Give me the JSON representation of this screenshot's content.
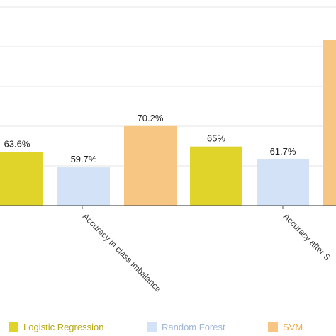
{
  "chart_data": {
    "type": "bar",
    "categories": [
      "Accuracy in class imbalance",
      "Accuracy after S"
    ],
    "series": [
      {
        "name": "Logistic Regression",
        "values": [
          63.6,
          65
        ],
        "labels": [
          "63.6%",
          "65%"
        ],
        "color": "#e0d42b",
        "legend_text_color": "#b7a81b"
      },
      {
        "name": "Random Forest",
        "values": [
          59.7,
          61.7
        ],
        "labels": [
          "59.7%",
          "61.7%"
        ],
        "color": "#d3e2f7",
        "legend_text_color": "#9fb6d8"
      },
      {
        "name": "SVM",
        "values": [
          70.2,
          92
        ],
        "labels": [
          "70.2%",
          ""
        ],
        "color": "#f7c682",
        "legend_text_color": "#f0a94a"
      }
    ],
    "ylim": [
      50,
      95
    ],
    "grid": true,
    "legend_position": "bottom"
  }
}
